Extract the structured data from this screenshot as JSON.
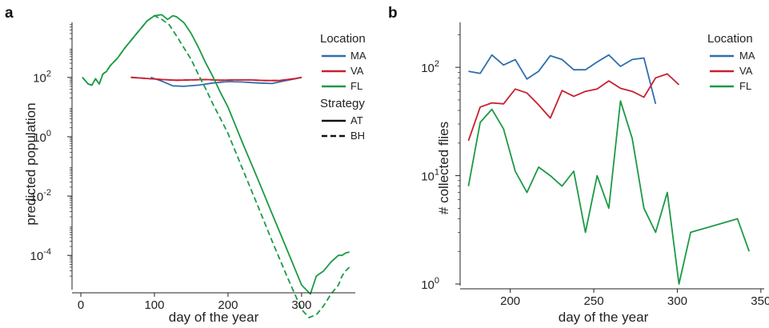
{
  "chart_data": [
    {
      "panel": "a",
      "type": "line",
      "xlabel": "day of the year",
      "ylabel": "predicted population",
      "xlim": [
        -12,
        373
      ],
      "ylim_log10": [
        -5.1,
        3.8
      ],
      "y_scale": "log",
      "grid": false,
      "legend_placement": "top-right",
      "x_ticks": [
        "0",
        "100",
        "200",
        "300"
      ],
      "y_ticks": [
        {
          "base": "10",
          "exp": "2"
        },
        {
          "base": "10",
          "exp": "0"
        },
        {
          "base": "10",
          "exp": "-2"
        },
        {
          "base": "10",
          "exp": "-4"
        }
      ],
      "legend": {
        "location_title": "Location",
        "locations": [
          {
            "label": "MA",
            "color": "#2d6eaf"
          },
          {
            "label": "VA",
            "color": "#c8202f"
          },
          {
            "label": "FL",
            "color": "#1b9a45"
          }
        ],
        "strategy_title": "Strategy",
        "strategies": [
          {
            "label": "AT",
            "dash": "solid"
          },
          {
            "label": "BH",
            "dash": "dashed"
          }
        ]
      },
      "series": [
        {
          "name": "MA",
          "strategy": "AT",
          "color": "#2d6eaf",
          "dash": "solid",
          "x": [
            95,
            110,
            125,
            140,
            160,
            180,
            200,
            220,
            240,
            260,
            275,
            290,
            300
          ],
          "y": [
            100,
            75,
            52,
            50,
            55,
            65,
            72,
            70,
            65,
            62,
            75,
            88,
            100
          ]
        },
        {
          "name": "VA",
          "strategy": "AT",
          "color": "#c8202f",
          "dash": "solid",
          "x": [
            68,
            90,
            110,
            130,
            150,
            170,
            190,
            210,
            230,
            250,
            270,
            290,
            300
          ],
          "y": [
            100,
            92,
            85,
            80,
            82,
            85,
            80,
            82,
            82,
            78,
            78,
            90,
            100
          ]
        },
        {
          "name": "VA",
          "strategy": "BH",
          "color": "#c8202f",
          "dash": "dashed",
          "x": [
            68,
            90,
            110,
            130,
            150,
            170,
            190,
            210,
            230,
            250,
            270,
            290,
            300
          ],
          "y": [
            100,
            92,
            85,
            80,
            82,
            85,
            80,
            82,
            82,
            78,
            78,
            90,
            100
          ]
        },
        {
          "name": "FL",
          "strategy": "AT",
          "color": "#1b9a45",
          "dash": "solid",
          "x": [
            2,
            10,
            15,
            20,
            25,
            30,
            35,
            40,
            50,
            60,
            70,
            80,
            90,
            100,
            110,
            118,
            125,
            130,
            140,
            150,
            160,
            170,
            180,
            190,
            200,
            220,
            240,
            260,
            280,
            300,
            312,
            320,
            330,
            340,
            350,
            355,
            360,
            365
          ],
          "y": [
            100,
            60,
            55,
            90,
            60,
            130,
            160,
            250,
            450,
            1000,
            2000,
            4000,
            8000,
            12000,
            13000,
            9000,
            12000,
            11000,
            7000,
            3000,
            1000,
            300,
            100,
            30,
            10,
            0.6,
            0.04,
            0.0025,
            0.00016,
            1e-05,
            5e-06,
            2e-05,
            3e-05,
            6e-05,
            0.0001,
            0.0001,
            0.00012,
            0.00013
          ]
        },
        {
          "name": "FL",
          "strategy": "BH",
          "color": "#1b9a45",
          "dash": "dashed",
          "x": [
            2,
            10,
            15,
            20,
            25,
            30,
            35,
            40,
            50,
            60,
            70,
            80,
            90,
            100,
            110,
            120,
            130,
            140,
            150,
            160,
            170,
            180,
            190,
            200,
            220,
            240,
            260,
            280,
            300,
            310,
            320,
            330,
            340,
            350,
            355,
            360,
            365
          ],
          "y": [
            100,
            60,
            55,
            90,
            60,
            130,
            160,
            250,
            450,
            1000,
            2000,
            4000,
            8000,
            12000,
            9000,
            6000,
            2500,
            1000,
            400,
            120,
            40,
            12,
            4,
            1.3,
            0.08,
            0.005,
            0.0003,
            2e-05,
            1.5e-06,
            8e-07,
            1e-06,
            2e-06,
            5e-06,
            1e-05,
            2e-05,
            3e-05,
            4e-05
          ]
        }
      ]
    },
    {
      "panel": "b",
      "type": "line",
      "xlabel": "day of the year",
      "ylabel": "# collected flies",
      "xlim": [
        170,
        352
      ],
      "ylim_log10": [
        0,
        2.4
      ],
      "y_scale": "log",
      "grid": false,
      "legend_placement": "top-right",
      "x_ticks": [
        "200",
        "250",
        "300",
        "350"
      ],
      "y_ticks": [
        {
          "base": "10",
          "exp": "2"
        },
        {
          "base": "10",
          "exp": "1"
        },
        {
          "base": "10",
          "exp": "0"
        }
      ],
      "legend": {
        "location_title": "Location",
        "locations": [
          {
            "label": "MA",
            "color": "#2d6eaf"
          },
          {
            "label": "VA",
            "color": "#c8202f"
          },
          {
            "label": "FL",
            "color": "#1b9a45"
          }
        ]
      },
      "series": [
        {
          "name": "MA",
          "color": "#2d6eaf",
          "x": [
            175,
            182,
            189,
            196,
            203,
            210,
            217,
            224,
            231,
            238,
            245,
            252,
            259,
            266,
            273,
            280,
            287
          ],
          "y": [
            92,
            88,
            130,
            105,
            118,
            78,
            92,
            128,
            118,
            95,
            95,
            112,
            130,
            102,
            118,
            122,
            46
          ]
        },
        {
          "name": "VA",
          "color": "#c8202f",
          "x": [
            175,
            182,
            189,
            196,
            203,
            210,
            217,
            224,
            231,
            238,
            245,
            252,
            259,
            266,
            273,
            280,
            287,
            294,
            301
          ],
          "y": [
            21,
            43,
            47,
            46,
            63,
            58,
            45,
            34,
            61,
            54,
            60,
            63,
            75,
            64,
            60,
            53,
            80,
            87,
            69
          ]
        },
        {
          "name": "FL",
          "color": "#1b9a45",
          "x": [
            175,
            182,
            189,
            196,
            203,
            210,
            217,
            224,
            231,
            238,
            245,
            252,
            259,
            266,
            273,
            280,
            287,
            294,
            301,
            308,
            336,
            343
          ],
          "y": [
            8,
            31,
            41,
            27,
            11,
            7,
            12,
            10,
            8,
            11,
            3,
            10,
            5,
            49,
            22,
            5,
            3,
            7,
            1,
            3,
            4,
            2
          ]
        }
      ]
    }
  ]
}
